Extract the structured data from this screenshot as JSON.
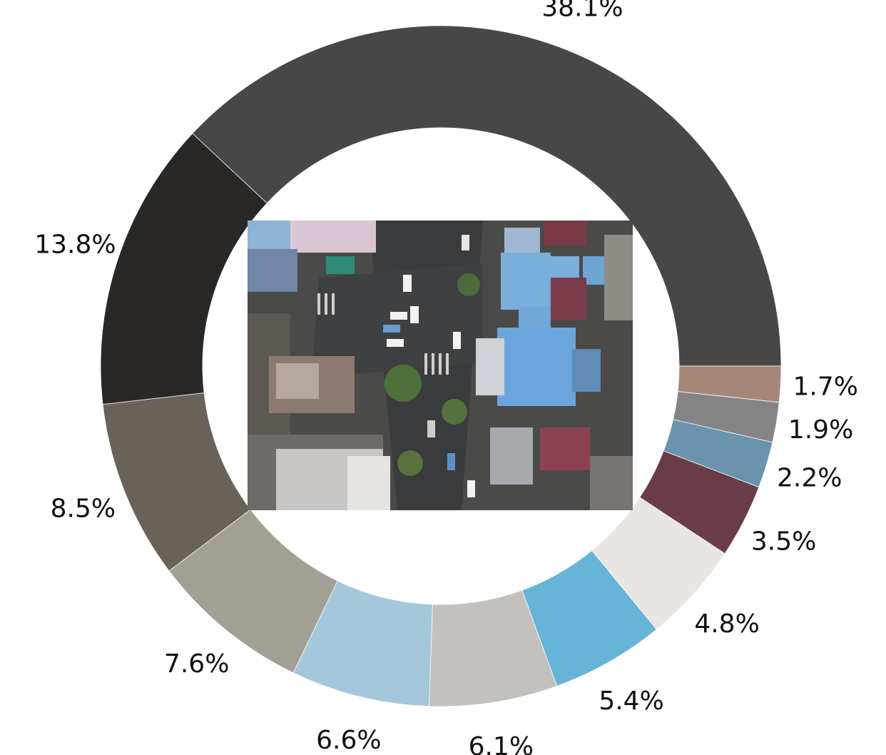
{
  "chart_data": {
    "type": "donut",
    "title": "",
    "start_angle_deg": 0,
    "direction": "counterclockwise",
    "slices": [
      {
        "label": "38.1%",
        "value": 38.1,
        "color": "#474747"
      },
      {
        "label": "13.8%",
        "value": 13.8,
        "color": "#292826"
      },
      {
        "label": "8.5%",
        "value": 8.5,
        "color": "#686259"
      },
      {
        "label": "7.6%",
        "value": 7.6,
        "color": "#a29f95"
      },
      {
        "label": "6.6%",
        "value": 6.6,
        "color": "#a4c7dc"
      },
      {
        "label": "6.1%",
        "value": 6.1,
        "color": "#c3c1bd"
      },
      {
        "label": "5.4%",
        "value": 5.4,
        "color": "#66b4d7"
      },
      {
        "label": "4.8%",
        "value": 4.8,
        "color": "#e8e5e2"
      },
      {
        "label": "3.5%",
        "value": 3.5,
        "color": "#6a3c48"
      },
      {
        "label": "2.2%",
        "value": 2.2,
        "color": "#6a94ad"
      },
      {
        "label": "1.9%",
        "value": 1.9,
        "color": "#858485"
      },
      {
        "label": "1.7%",
        "value": 1.7,
        "color": "#a68777"
      }
    ],
    "center_image": "aerial-city-photo"
  }
}
